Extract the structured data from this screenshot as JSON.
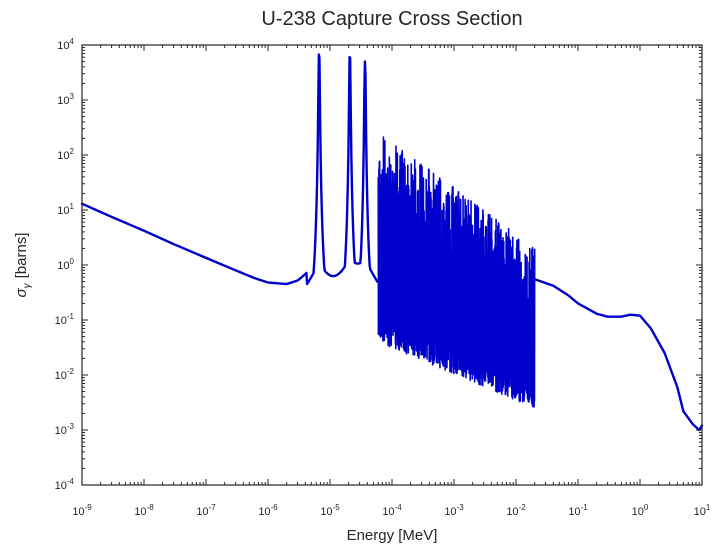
{
  "chart_data": {
    "type": "line",
    "title": "U-238 Capture Cross Section",
    "xlabel": "Energy [MeV]",
    "ylabel_symbol": "σ",
    "ylabel_subscript": "γ",
    "ylabel_unit": "[barns]",
    "xscale": "log",
    "yscale": "log",
    "xlim": [
      1e-09,
      10
    ],
    "ylim": [
      0.0001,
      10000
    ],
    "x_ticks": [
      {
        "base": "10",
        "exp": "-9"
      },
      {
        "base": "10",
        "exp": "-8"
      },
      {
        "base": "10",
        "exp": "-7"
      },
      {
        "base": "10",
        "exp": "-6"
      },
      {
        "base": "10",
        "exp": "-5"
      },
      {
        "base": "10",
        "exp": "-4"
      },
      {
        "base": "10",
        "exp": "-3"
      },
      {
        "base": "10",
        "exp": "-2"
      },
      {
        "base": "10",
        "exp": "-1"
      },
      {
        "base": "10",
        "exp": "0"
      },
      {
        "base": "10",
        "exp": "1"
      }
    ],
    "y_ticks": [
      {
        "base": "10",
        "exp": "-4"
      },
      {
        "base": "10",
        "exp": "-3"
      },
      {
        "base": "10",
        "exp": "-2"
      },
      {
        "base": "10",
        "exp": "-1"
      },
      {
        "base": "10",
        "exp": "0"
      },
      {
        "base": "10",
        "exp": "1"
      },
      {
        "base": "10",
        "exp": "2"
      },
      {
        "base": "10",
        "exp": "3"
      },
      {
        "base": "10",
        "exp": "4"
      }
    ],
    "grid": false,
    "color": "#0000cc",
    "series": [
      {
        "smooth_points": [
          [
            1e-09,
            13.0
          ],
          [
            3e-09,
            7.5
          ],
          [
            1e-08,
            4.2
          ],
          [
            3e-08,
            2.4
          ],
          [
            1e-07,
            1.35
          ],
          [
            3e-07,
            0.8
          ],
          [
            6e-07,
            0.58
          ],
          [
            1e-06,
            0.48
          ],
          [
            2e-06,
            0.45
          ],
          [
            3e-06,
            0.52
          ],
          [
            4.2e-06,
            0.7
          ]
        ],
        "resonances": [
          {
            "e": 6.67e-06,
            "peak": 7000
          },
          {
            "e": 2.09e-05,
            "peak": 6500
          },
          {
            "e": 3.67e-05,
            "peak": 5000
          }
        ],
        "dense_band": {
          "x_start": 6e-05,
          "x_end": 0.02,
          "top_start": 300,
          "top_end": 2,
          "bottom_start": 0.04,
          "bottom_end": 0.0025
        },
        "tail_points": [
          [
            0.02,
            0.55
          ],
          [
            0.04,
            0.42
          ],
          [
            0.07,
            0.28
          ],
          [
            0.1,
            0.2
          ],
          [
            0.2,
            0.13
          ],
          [
            0.3,
            0.115
          ],
          [
            0.5,
            0.115
          ],
          [
            0.7,
            0.125
          ],
          [
            1.0,
            0.12
          ],
          [
            1.5,
            0.07
          ],
          [
            2.5,
            0.025
          ],
          [
            4.0,
            0.006
          ],
          [
            5.0,
            0.0022
          ],
          [
            7.0,
            0.0013
          ],
          [
            9.0,
            0.001
          ],
          [
            10.0,
            0.0012
          ]
        ]
      }
    ]
  }
}
